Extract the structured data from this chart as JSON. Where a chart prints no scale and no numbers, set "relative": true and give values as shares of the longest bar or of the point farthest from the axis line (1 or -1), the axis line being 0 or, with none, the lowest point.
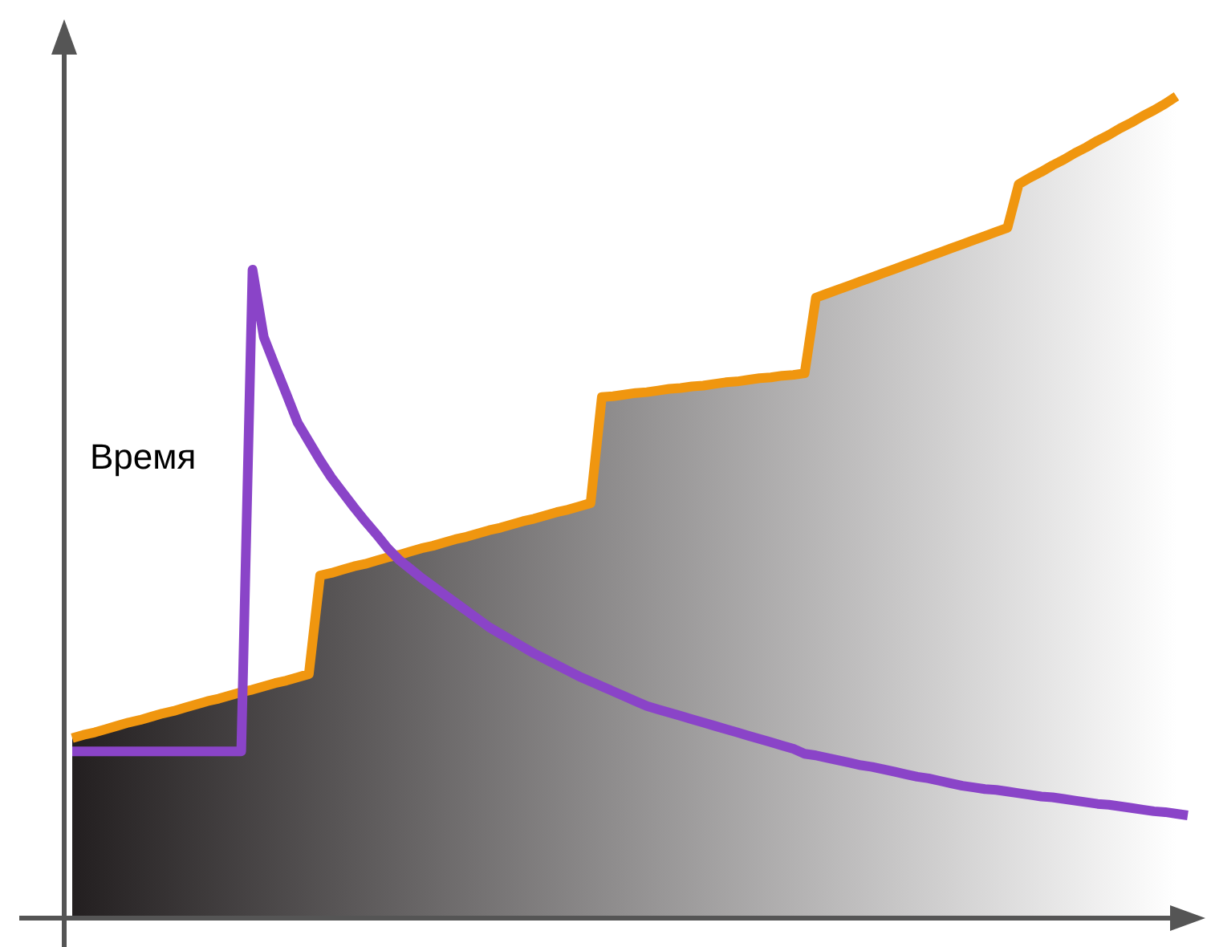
{
  "chart_data": {
    "type": "line",
    "relative": true,
    "marker": "none",
    "line_style": "solid",
    "annotations": [
      "Время"
    ],
    "categories": [
      null,
      null,
      null,
      null,
      null,
      null,
      null,
      null,
      null,
      null,
      null,
      null,
      null,
      null,
      null,
      null,
      null,
      null,
      null,
      null,
      null,
      null,
      null,
      null,
      null,
      null,
      null,
      null,
      null,
      null,
      null,
      null,
      null,
      null,
      null,
      null,
      null,
      null,
      null,
      null,
      null,
      null,
      null,
      null,
      null,
      null,
      null,
      null,
      null,
      null,
      null,
      null,
      null,
      null,
      null,
      null,
      null,
      null,
      null,
      null,
      null,
      null,
      null,
      null,
      null,
      null,
      null,
      null,
      null,
      null,
      null,
      null,
      null,
      null,
      null,
      null,
      null,
      null,
      null,
      null,
      null,
      null,
      null,
      null,
      null,
      null,
      null,
      null,
      null,
      null,
      null,
      null,
      null,
      null,
      null,
      null,
      null,
      null,
      null,
      null
    ],
    "series": [
      {
        "type": "area",
        "color": "#f0960f",
        "values": [
          0.219,
          0.223,
          0.226,
          0.23,
          0.234,
          0.238,
          0.241,
          0.245,
          0.249,
          0.252,
          0.256,
          0.26,
          0.264,
          0.267,
          0.271,
          0.275,
          0.278,
          0.282,
          0.286,
          0.289,
          0.293,
          0.297,
          0.417,
          0.42,
          0.424,
          0.428,
          0.431,
          0.435,
          0.439,
          0.442,
          0.446,
          0.45,
          0.453,
          0.457,
          0.461,
          0.464,
          0.468,
          0.472,
          0.475,
          0.479,
          0.483,
          0.486,
          0.49,
          0.494,
          0.497,
          0.501,
          0.505,
          0.634,
          0.635,
          0.637,
          0.639,
          0.64,
          0.642,
          0.644,
          0.645,
          0.647,
          0.648,
          0.65,
          0.652,
          0.653,
          0.655,
          0.657,
          0.658,
          0.66,
          0.661,
          0.663,
          0.755,
          0.76,
          0.765,
          0.77,
          0.775,
          0.78,
          0.785,
          0.79,
          0.795,
          0.8,
          0.805,
          0.81,
          0.815,
          0.82,
          0.825,
          0.83,
          0.835,
          0.84,
          0.893,
          0.901,
          0.908,
          0.916,
          0.923,
          0.931,
          0.938,
          0.946,
          0.953,
          0.961,
          0.968,
          0.976,
          0.983,
          0.991,
          1.0,
          null
        ]
      },
      {
        "color": "#8a44c8",
        "values": [
          0.203,
          0.203,
          0.203,
          0.203,
          0.203,
          0.203,
          0.203,
          0.203,
          0.203,
          0.203,
          0.203,
          0.203,
          0.203,
          0.203,
          0.203,
          0.203,
          0.789,
          0.707,
          0.672,
          0.638,
          0.603,
          0.58,
          0.557,
          0.536,
          0.518,
          0.5,
          0.483,
          0.467,
          0.45,
          0.436,
          0.425,
          0.414,
          0.404,
          0.394,
          0.384,
          0.374,
          0.364,
          0.354,
          0.346,
          0.338,
          0.33,
          0.322,
          0.315,
          0.308,
          0.301,
          0.294,
          0.288,
          0.282,
          0.276,
          0.27,
          0.264,
          0.258,
          0.254,
          0.25,
          0.246,
          0.242,
          0.238,
          0.234,
          0.23,
          0.226,
          0.222,
          0.218,
          0.214,
          0.21,
          0.206,
          0.2,
          0.198,
          0.195,
          0.192,
          0.189,
          0.186,
          0.184,
          0.181,
          0.178,
          0.175,
          0.172,
          0.17,
          0.167,
          0.164,
          0.161,
          0.159,
          0.157,
          0.156,
          0.154,
          0.152,
          0.15,
          0.148,
          0.147,
          0.145,
          0.143,
          0.141,
          0.139,
          0.138,
          0.136,
          0.134,
          0.132,
          0.13,
          0.129,
          0.127,
          0.125
        ]
      }
    ]
  }
}
